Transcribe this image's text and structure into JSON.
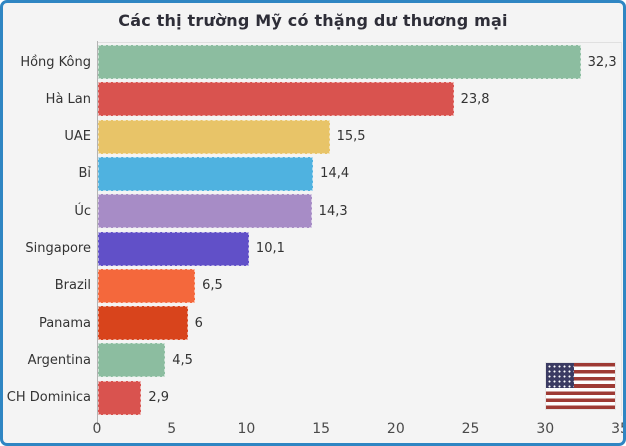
{
  "window": {
    "border_color": "#2f86c3",
    "background_color": "#f4f4f4"
  },
  "chart_data": {
    "type": "bar",
    "orientation": "horizontal",
    "title": "Các thị trường Mỹ có thặng dư thương mại",
    "categories": [
      "Hồng Kông",
      "Hà Lan",
      "UAE",
      "Bỉ",
      "Úc",
      "Singapore",
      "Brazil",
      "Panama",
      "Argentina",
      "CH Dominica"
    ],
    "values": [
      32.3,
      23.8,
      15.5,
      14.4,
      14.3,
      10.1,
      6.5,
      6,
      4.5,
      2.9
    ],
    "value_labels": [
      "32,3",
      "23,8",
      "15,5",
      "14,4",
      "14,3",
      "10,1",
      "6,5",
      "6",
      "4,5",
      "2,9"
    ],
    "bar_colors": [
      "#8cbda0",
      "#d9534f",
      "#e8c468",
      "#4fb2e0",
      "#a78cc6",
      "#6150c8",
      "#f4683c",
      "#d8441c",
      "#8cbda0",
      "#d9534f"
    ],
    "xlabel": "",
    "ylabel": "",
    "xlim": [
      0,
      35
    ],
    "xticks": [
      "0",
      "5",
      "10",
      "15",
      "20",
      "25",
      "30",
      "35"
    ],
    "grid": false,
    "legend": false,
    "text_color": "#333333",
    "tick_color": "#4a4a4a"
  },
  "icons": {
    "flag": "us-flag-icon"
  }
}
